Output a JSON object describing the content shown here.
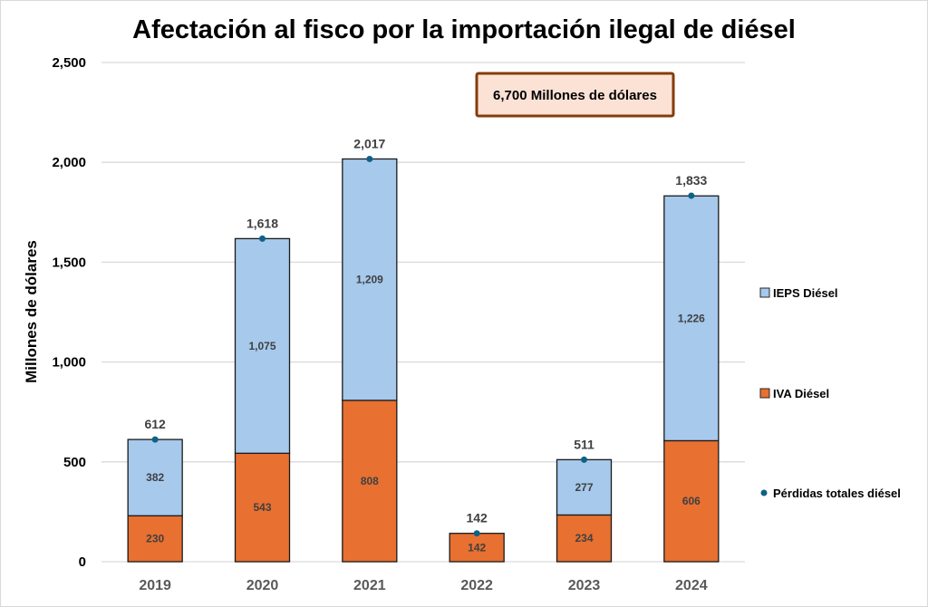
{
  "chart_data": {
    "type": "bar",
    "stacked": true,
    "title": "Afectación al fisco por la importación ilegal de diésel",
    "xlabel": "",
    "ylabel": "Millones de dólares",
    "ylim": [
      0,
      2500
    ],
    "yticks": [
      0,
      500,
      1000,
      1500,
      2000,
      2500
    ],
    "ytick_labels": [
      "0",
      "500",
      "1,000",
      "1,500",
      "2,000",
      "2,500"
    ],
    "grid": true,
    "categories": [
      "2019",
      "2020",
      "2021",
      "2022",
      "2023",
      "2024"
    ],
    "series": [
      {
        "name": "IVA Diésel",
        "kind": "bar",
        "color": "#E87031",
        "values": [
          230,
          543,
          808,
          142,
          234,
          606
        ],
        "labels": [
          "230",
          "543",
          "808",
          "142",
          "234",
          "606"
        ]
      },
      {
        "name": "IEPS Diésel",
        "kind": "bar",
        "color": "#A6C9EC",
        "values": [
          382,
          1075,
          1209,
          0,
          277,
          1226
        ],
        "labels": [
          "382",
          "1,075",
          "1,209",
          "",
          "277",
          "1,226"
        ]
      },
      {
        "name": "Pérdidas totales diésel",
        "kind": "scatter",
        "color": "#0E6287",
        "values": [
          612,
          1618,
          2017,
          142,
          511,
          1833
        ],
        "labels": [
          "612",
          "1,618",
          "2,017",
          "142",
          "511",
          "1,833"
        ]
      }
    ],
    "legend": {
      "position": "right",
      "entries": [
        "IEPS Diésel",
        "IVA Diésel",
        "Pérdidas totales diésel"
      ]
    },
    "annotation": {
      "text": "6,700 Millones de dólares",
      "position": "top-center",
      "fill": "#FBE2D5",
      "border": "#843C0C"
    }
  }
}
